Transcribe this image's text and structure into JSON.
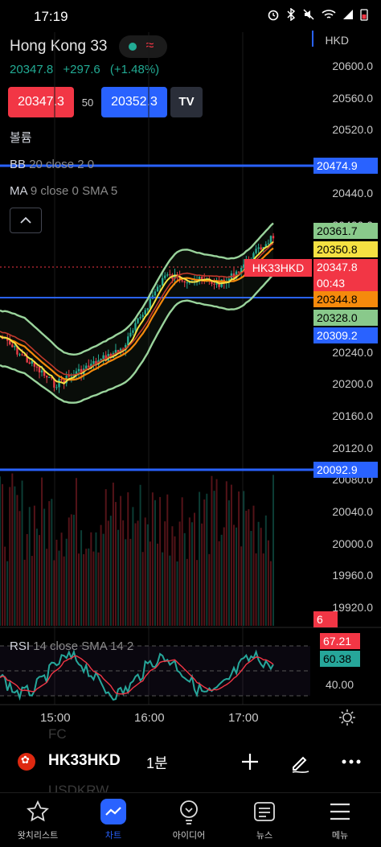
{
  "status_bar": {
    "time": "17:19"
  },
  "header": {
    "symbol_title": "Hong Kong 33",
    "last_price": "20347.8",
    "change": "+297.6",
    "change_pct": "(+1.48%)",
    "sell_price": "20347.3",
    "spread": "50",
    "buy_price": "20352.3",
    "currency": "HKD"
  },
  "indicators": {
    "volume_label": "볼륨",
    "bb_name": "BB",
    "bb_params": "20 close 2 0",
    "ma_name": "MA",
    "ma_params": "9 close 0 SMA 5",
    "collapse_glyph": "^"
  },
  "price_axis": {
    "ticks": [
      "20600.0",
      "20560.0",
      "20520.0",
      "20440.0",
      "20400.0",
      "20240.0",
      "20200.0",
      "20160.0",
      "20120.0",
      "20080.0",
      "20040.0",
      "20000.0",
      "19960.0",
      "19920.0"
    ],
    "tags": {
      "hline_upper": "20474.9",
      "bb_upper": "20361.7",
      "ma": "20350.8",
      "last": "20347.8",
      "countdown": "00:43",
      "bb_basis": "20344.8",
      "bb_lower_a": "20328.0",
      "bb_lower_b": "20309.2",
      "hline_lower": "20092.9",
      "volume": "6"
    },
    "symbol_label": "HK33HKD"
  },
  "rsi": {
    "name": "RSI",
    "params": "14 close SMA 14 2",
    "value": "67.21",
    "sma_value": "60.38",
    "level": "40.00"
  },
  "time_axis": [
    "15:00",
    "16:00",
    "17:00"
  ],
  "bottom_symbol": {
    "ticker": "HK33HKD",
    "interval": "1분",
    "ghost_above": "FC",
    "ghost_below": "USDKRW"
  },
  "tabs": [
    {
      "label": "왓치리스트",
      "icon": "star-icon"
    },
    {
      "label": "차트",
      "icon": "chart-icon"
    },
    {
      "label": "아이디어",
      "icon": "bulb-icon"
    },
    {
      "label": "뉴스",
      "icon": "news-icon"
    },
    {
      "label": "메뉴",
      "icon": "menu-icon"
    }
  ],
  "colors": {
    "bb_band": "#9ad49c",
    "ma_line": "#f5e142",
    "basis_line": "#f58a0c",
    "up": "#22ab94",
    "down": "#f23645",
    "hline": "#2962ff",
    "rsi_line": "#26a69a",
    "rsi_sma": "#f23645"
  }
}
